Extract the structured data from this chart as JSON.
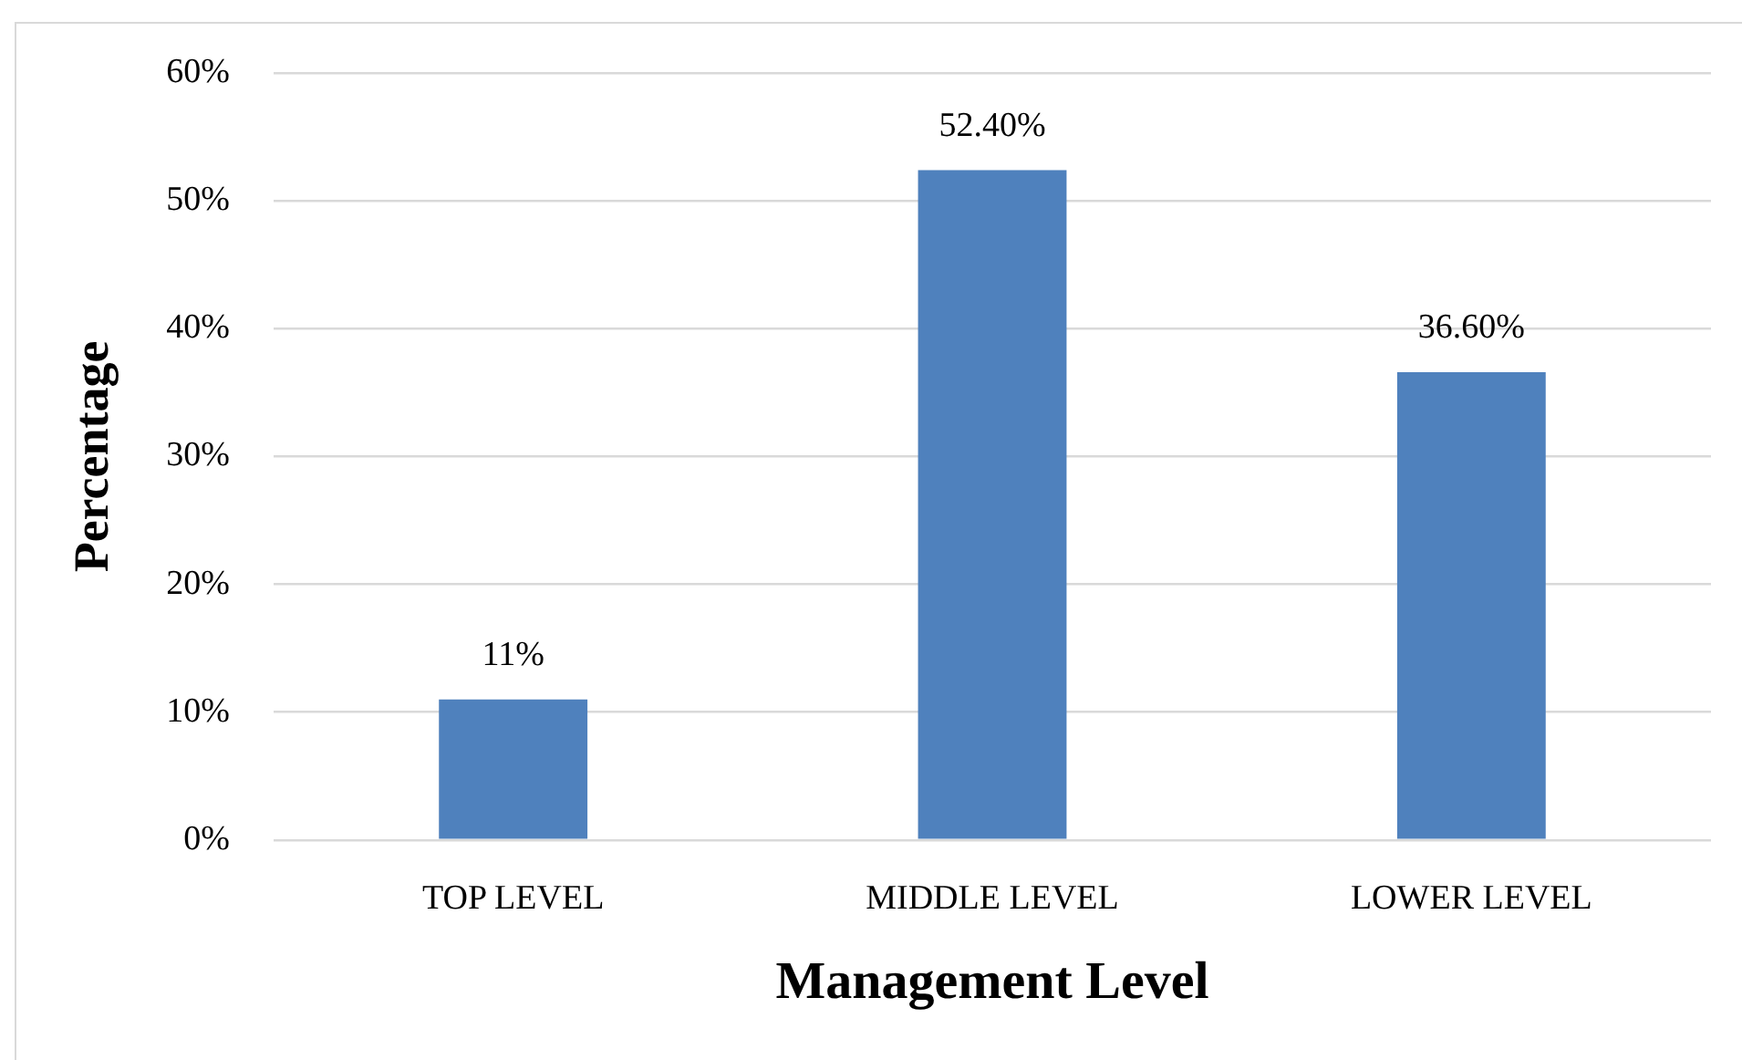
{
  "chart_data": {
    "type": "bar",
    "xlabel": "Management Level",
    "ylabel": "Percentage",
    "categories": [
      "TOP LEVEL",
      "MIDDLE LEVEL",
      "LOWER LEVEL"
    ],
    "values": [
      11,
      52.4,
      36.6
    ],
    "color": "#4f81bd",
    "value_labels": [
      "11%",
      "52.40%",
      "36.60%"
    ],
    "ylim": [
      0,
      60
    ],
    "yticks": [
      {
        "value": 0,
        "label": "0%"
      },
      {
        "value": 10,
        "label": "10%"
      },
      {
        "value": 20,
        "label": "20%"
      },
      {
        "value": 30,
        "label": "30%"
      },
      {
        "value": 40,
        "label": "40%"
      },
      {
        "value": 50,
        "label": "50%"
      },
      {
        "value": 60,
        "label": "60%"
      }
    ],
    "grid": "y"
  }
}
